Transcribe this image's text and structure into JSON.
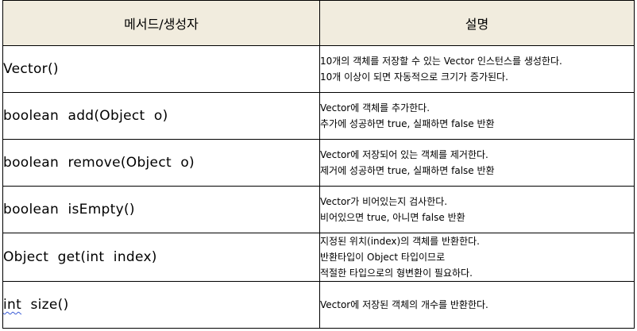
{
  "header": {
    "method": "메서드/생성자",
    "description": "설명"
  },
  "rows": [
    {
      "method": "Vector()",
      "description": [
        "10개의 객체를 저장할 수 있는 Vector 인스턴스를 생성한다.",
        "10개 이상이 되면 자동적으로 크기가 증가된다."
      ]
    },
    {
      "method": "boolean  add(Object  o)",
      "description": [
        "Vector에 객체를 추가한다.",
        "추가에 성공하면 true, 실패하면 false 반환"
      ]
    },
    {
      "method": "boolean  remove(Object  o)",
      "description": [
        "Vector에 저장되어 있는 객체를 제거한다.",
        "제거에 성공하면 true, 실패하면 false 반환"
      ]
    },
    {
      "method": "boolean  isEmpty()",
      "description": [
        "Vector가 비어있는지 검사한다.",
        "비어있으면 true, 아니면 false 반환"
      ]
    },
    {
      "method": "Object  get(int  index)",
      "description": [
        "지정된 위치(index)의 객체를 반환한다.",
        "반환타입이 Object 타입이므로",
        "적절한 타입으로의 형변환이 필요하다."
      ]
    },
    {
      "method_kw": "int",
      "method": "size()",
      "description": [
        "Vector에 저장된 객체의 개수를 반환한다."
      ]
    }
  ]
}
